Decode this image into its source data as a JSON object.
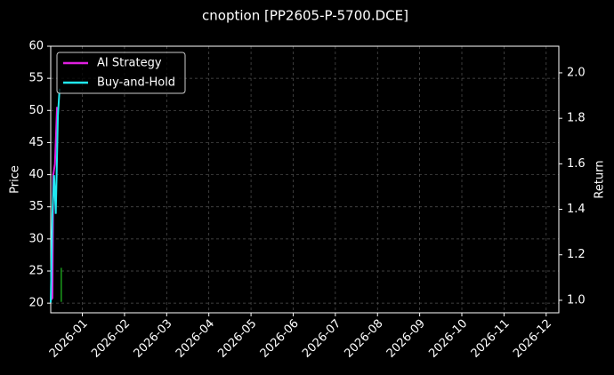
{
  "chart_data": {
    "type": "line",
    "title": "cnoption [PP2605-P-5700.DCE]",
    "ylabel": "Price",
    "y2label": "Return",
    "xlim": [
      -0.75,
      11.3
    ],
    "xticks": [
      {
        "value": 0,
        "label": "2026-01"
      },
      {
        "value": 1,
        "label": "2026-02"
      },
      {
        "value": 2,
        "label": "2026-03"
      },
      {
        "value": 3,
        "label": "2026-04"
      },
      {
        "value": 4,
        "label": "2026-05"
      },
      {
        "value": 5,
        "label": "2026-06"
      },
      {
        "value": 6,
        "label": "2026-07"
      },
      {
        "value": 7,
        "label": "2026-08"
      },
      {
        "value": 8,
        "label": "2026-09"
      },
      {
        "value": 9,
        "label": "2026-10"
      },
      {
        "value": 10,
        "label": "2026-11"
      },
      {
        "value": 11,
        "label": "2026-12"
      }
    ],
    "ylim": [
      18.5,
      60
    ],
    "yticks": [
      20,
      25,
      30,
      35,
      40,
      45,
      50,
      55,
      60
    ],
    "y2lim": [
      0.945,
      2.117
    ],
    "y2ticks": [
      {
        "value": 1,
        "label": "1.0"
      },
      1.2,
      1.4,
      1.6,
      1.8,
      {
        "value": 2,
        "label": "2.0"
      }
    ],
    "grid": true,
    "legend": "upper-left",
    "series": [
      {
        "name": "AI Strategy",
        "color": "#e020e0",
        "axis": "y2",
        "x": [
          -0.75,
          -0.71,
          -0.69,
          -0.65,
          -0.6
        ],
        "values": [
          1.0,
          1.01,
          1.55,
          1.6,
          1.85
        ]
      },
      {
        "name": "Buy-and-Hold",
        "color": "#20e8f0",
        "axis": "y2",
        "x": [
          -0.75,
          -0.71,
          -0.67,
          -0.63,
          -0.58,
          -0.54
        ],
        "values": [
          0.99,
          1.38,
          1.55,
          1.38,
          1.81,
          1.93
        ]
      }
    ],
    "signals": {
      "color": "#1a9a1a",
      "x": [
        -0.5
      ],
      "low": [
        20.2
      ],
      "high": [
        25.5
      ]
    }
  }
}
